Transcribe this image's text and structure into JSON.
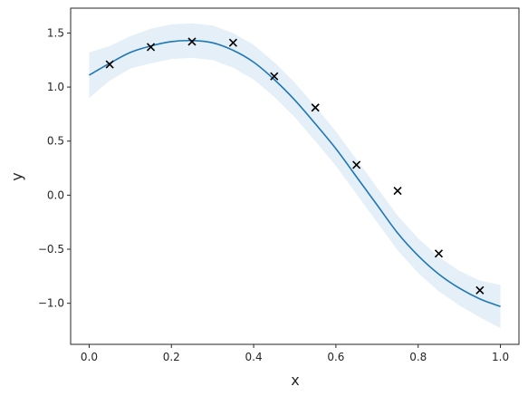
{
  "chart_data": {
    "type": "line",
    "title": "",
    "xlabel": "x",
    "ylabel": "y",
    "xlim": [
      -0.045,
      1.045
    ],
    "ylim": [
      -1.38,
      1.73
    ],
    "grid": false,
    "xticks": [
      0.0,
      0.2,
      0.4,
      0.6,
      0.8,
      1.0
    ],
    "xtick_labels": [
      "0.0",
      "0.2",
      "0.4",
      "0.6",
      "0.8",
      "1.0"
    ],
    "yticks": [
      -1.0,
      -0.5,
      0.0,
      0.5,
      1.0,
      1.5
    ],
    "ytick_labels": [
      "−1.0",
      "−0.5",
      "0.0",
      "0.5",
      "1.0",
      "1.5"
    ],
    "colors": {
      "line": "#1f77b4",
      "band": "#c6dbef",
      "points": "#000000",
      "axes": "#262626"
    },
    "series": [
      {
        "type": "line",
        "x": [
          0.0,
          0.05,
          0.1,
          0.15,
          0.2,
          0.25,
          0.3,
          0.35,
          0.4,
          0.45,
          0.5,
          0.55,
          0.6,
          0.65,
          0.7,
          0.75,
          0.8,
          0.85,
          0.9,
          0.95,
          1.0
        ],
        "y": [
          1.11,
          1.22,
          1.32,
          1.38,
          1.42,
          1.43,
          1.41,
          1.34,
          1.23,
          1.07,
          0.88,
          0.66,
          0.43,
          0.17,
          -0.09,
          -0.35,
          -0.56,
          -0.73,
          -0.86,
          -0.96,
          -1.03
        ]
      },
      {
        "type": "band",
        "x": [
          0.0,
          0.05,
          0.1,
          0.15,
          0.2,
          0.25,
          0.3,
          0.35,
          0.4,
          0.45,
          0.5,
          0.55,
          0.6,
          0.65,
          0.7,
          0.75,
          0.8,
          0.85,
          0.9,
          0.95,
          1.0
        ],
        "upper": [
          1.32,
          1.38,
          1.47,
          1.54,
          1.58,
          1.59,
          1.57,
          1.5,
          1.39,
          1.23,
          1.04,
          0.82,
          0.59,
          0.33,
          0.07,
          -0.19,
          -0.4,
          -0.57,
          -0.7,
          -0.79,
          -0.83
        ],
        "lower": [
          0.9,
          1.06,
          1.17,
          1.22,
          1.26,
          1.27,
          1.25,
          1.18,
          1.07,
          0.91,
          0.72,
          0.5,
          0.27,
          0.01,
          -0.25,
          -0.51,
          -0.72,
          -0.89,
          -1.02,
          -1.13,
          -1.23
        ]
      },
      {
        "type": "scatter",
        "marker": "x",
        "x": [
          0.05,
          0.15,
          0.25,
          0.35,
          0.45,
          0.55,
          0.65,
          0.75,
          0.85,
          0.95
        ],
        "y": [
          1.21,
          1.37,
          1.42,
          1.41,
          1.1,
          0.81,
          0.28,
          0.04,
          -0.54,
          -0.88
        ]
      }
    ]
  }
}
